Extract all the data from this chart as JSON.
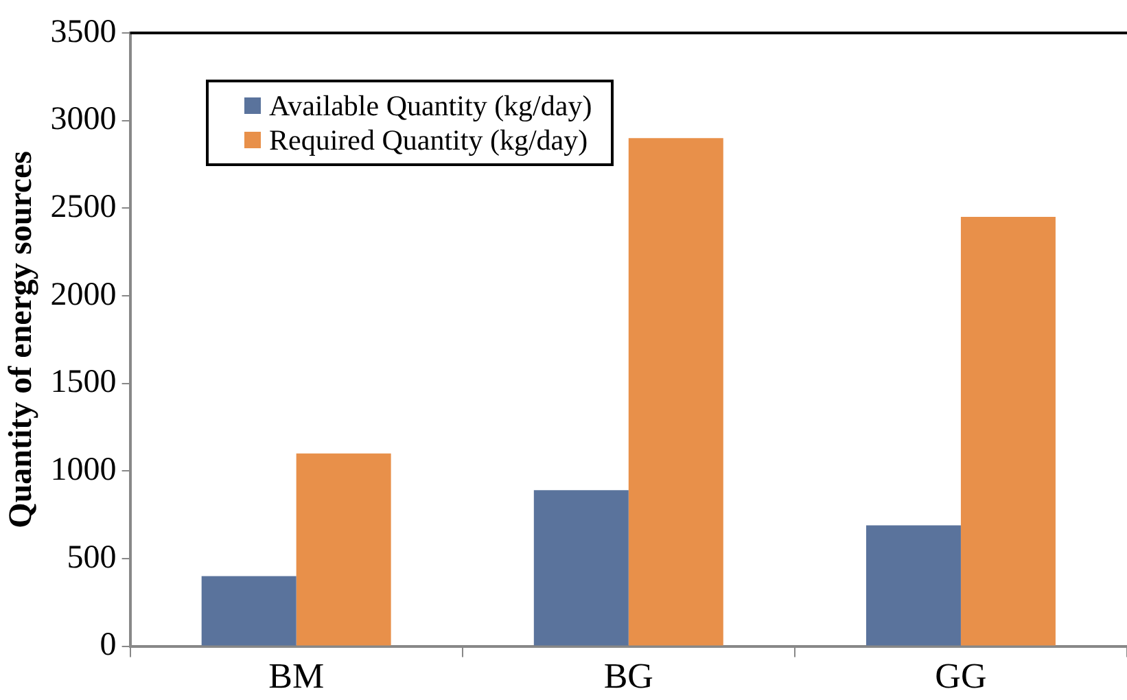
{
  "chart_data": {
    "type": "bar",
    "ylabel": "Quantity of energy sources",
    "categories": [
      "BM",
      "BG",
      "GG"
    ],
    "series": [
      {
        "name": "Available Quantity (kg/day)",
        "color": "#5a739c",
        "values": [
          400,
          890,
          690
        ]
      },
      {
        "name": "Required Quantity (kg/day)",
        "color": "#e8904a",
        "values": [
          1100,
          2900,
          2450
        ]
      }
    ],
    "ylim": [
      0,
      3500
    ],
    "yticks": [
      0,
      500,
      1000,
      1500,
      2000,
      2500,
      3000,
      3500
    ],
    "grid": false,
    "legend": "top left"
  }
}
